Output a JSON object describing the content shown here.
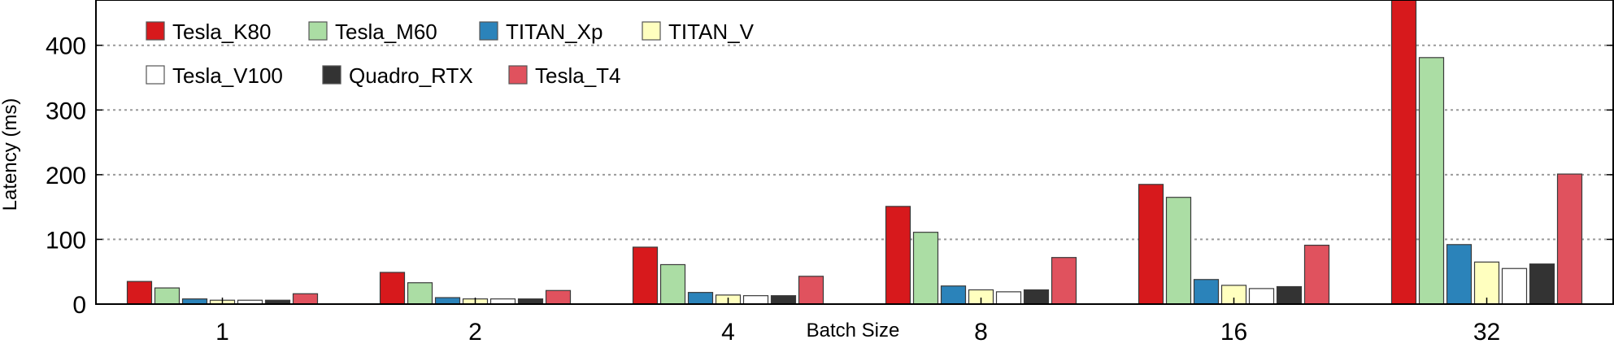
{
  "chart_data": {
    "type": "bar",
    "title": "",
    "xlabel": "Batch Size",
    "ylabel": "Latency (ms)",
    "categories": [
      "1",
      "2",
      "4",
      "8",
      "16",
      "32"
    ],
    "ylim": [
      0,
      470
    ],
    "yticks": [
      "0",
      "100",
      "200",
      "300",
      "400"
    ],
    "grid": "horizontal dotted",
    "legend_position": "top-left",
    "series": [
      {
        "name": "Tesla_K80",
        "color": "#d7191c",
        "values": [
          35,
          49,
          88,
          151,
          185,
          470
        ]
      },
      {
        "name": "Tesla_M60",
        "color": "#abdda4",
        "values": [
          25,
          33,
          61,
          111,
          165,
          381
        ]
      },
      {
        "name": "TITAN_Xp",
        "color": "#2b83ba",
        "values": [
          8,
          10,
          18,
          28,
          38,
          92
        ]
      },
      {
        "name": "TITAN_V",
        "color": "#ffffbf",
        "values": [
          6,
          8,
          14,
          22,
          29,
          65
        ]
      },
      {
        "name": "Tesla_V100",
        "color": "#ffffff",
        "values": [
          6,
          8,
          13,
          19,
          24,
          55
        ]
      },
      {
        "name": "Quadro_RTX",
        "color": "#333333",
        "values": [
          6,
          8,
          13,
          22,
          27,
          62
        ]
      },
      {
        "name": "Tesla_T4",
        "color": "#e0525e",
        "values": [
          16,
          21,
          43,
          72,
          91,
          201
        ]
      }
    ]
  }
}
